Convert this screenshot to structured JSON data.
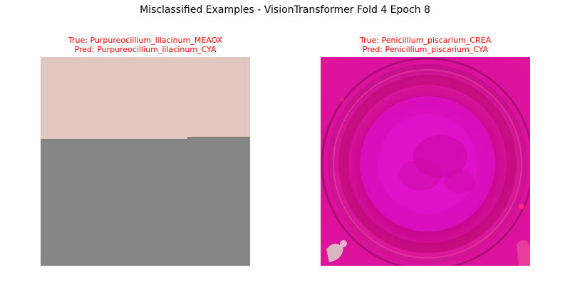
{
  "figure": {
    "title": "Misclassified Examples - VisionTransformer Fold 4 Epoch 8"
  },
  "examples": [
    {
      "true_label": "True: Purpureocillium_lilacinum_MEAOX",
      "pred_label": "Pred: Purpureocillium_lilacinum_CYA"
    },
    {
      "true_label": "True: Penicillium_piscarium_CREA",
      "pred_label": "Pred: Penicillium_piscarium_CYA"
    }
  ],
  "colors": {
    "caption": "#ff0000",
    "left_top": "#e2c6c0",
    "left_bottom": "#868686",
    "right_background": "#d1059f",
    "right_center": "#e010c8"
  }
}
